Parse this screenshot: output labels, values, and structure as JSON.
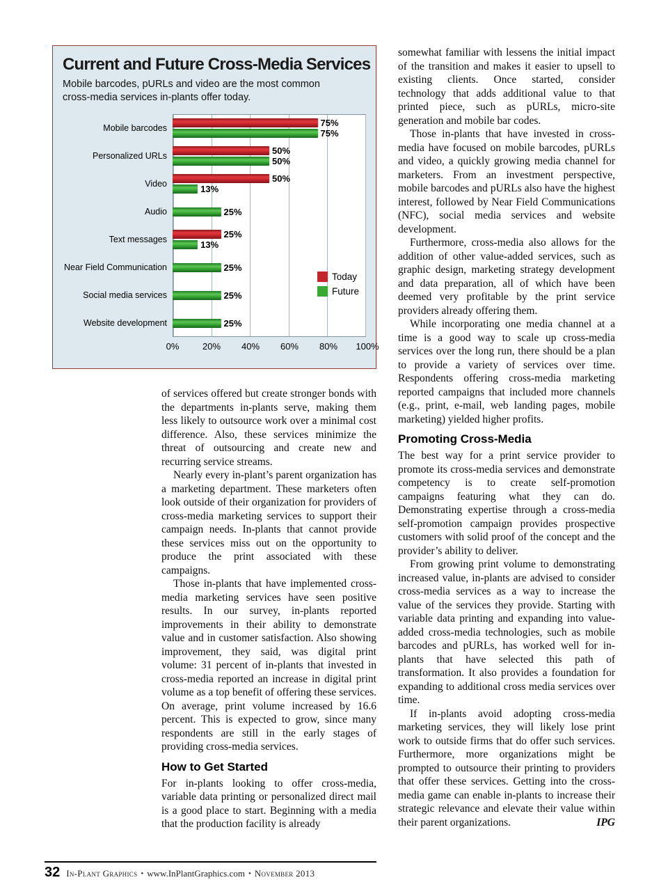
{
  "chart_data": {
    "type": "bar",
    "orientation": "horizontal",
    "title": "Current and Future Cross-Media Services",
    "subtitle": "Mobile barcodes, pURLs and video are the most common cross-media services in-plants offer today.",
    "categories": [
      "Mobile barcodes",
      "Personalized URLs",
      "Video",
      "Audio",
      "Text messages",
      "Near Field Communication",
      "Social media services",
      "Website development"
    ],
    "series": [
      {
        "name": "Today",
        "color": "#c1272d",
        "values": [
          75,
          50,
          50,
          null,
          25,
          null,
          null,
          null
        ]
      },
      {
        "name": "Future",
        "color": "#39a935",
        "values": [
          75,
          50,
          13,
          25,
          13,
          25,
          25,
          25
        ]
      }
    ],
    "xticks": [
      "0%",
      "20%",
      "40%",
      "60%",
      "80%",
      "100%"
    ],
    "xlim": [
      0,
      100
    ],
    "grid": "vertical",
    "legend_position": "inside-right",
    "panel_background": "#dde9ee"
  },
  "article": {
    "left_column": {
      "paragraphs_before_heading": [
        "of services offered but create stronger bonds with the departments in-plants serve, making them less likely to outsource work over a minimal cost difference. Also, these services minimize the threat of outsourcing and create new and recurring service streams.",
        "Nearly every in-plant’s parent organization has a marketing department. These marketers often look outside of their organization for providers of cross-media marketing services to support their campaign needs. In-plants that cannot provide these services miss out on the opportunity to produce the print associated with these campaigns.",
        "Those in-plants that have implemented cross-media marketing services have seen positive results. In our survey, in-plants reported improvements in their ability to demonstrate value and in customer satisfaction. Also showing improvement, they said, was digital print volume: 31 percent of in-plants that invested in cross-media reported an increase in digital print volume as a top benefit of offering these services. On average, print volume increased by 16.6 percent. This is expected to grow, since many respondents are still in the early stages of providing cross-media services."
      ],
      "heading": "How to Get Started",
      "paragraphs_after_heading": [
        "For in-plants looking to offer cross-media, variable data printing or personalized direct mail is a good place to start. Beginning with a media that the production facility is already"
      ]
    },
    "right_column": {
      "paragraphs_before_heading": [
        "somewhat familiar with lessens the initial impact of the transition and makes it easier to upsell to existing clients. Once started, consider technology that adds additional value to that printed piece, such as pURLs, micro-site generation and mobile bar codes.",
        "Those in-plants that have invested in cross-media have focused on mobile barcodes, pURLs and video, a quickly growing media channel for marketers. From an investment perspective, mobile barcodes and pURLs also have the highest interest, followed by Near Field Communications (NFC), social media services and website development.",
        "Furthermore, cross-media also allows for the addition of other value-added services, such as graphic design, marketing strategy development and data preparation, all of which have been deemed very profitable by the print service providers already offering them.",
        "While incorporating one media channel at a time is a good way to scale up cross-media services over the long run, there should be a plan to provide a variety of services over time. Respondents offering cross-media marketing reported campaigns that included more channels (e.g., print, e-mail, web landing pages, mobile marketing) yielded higher profits."
      ],
      "heading": "Promoting Cross-Media",
      "paragraphs_after_heading": [
        "The best way for a print service provider to promote its cross-media services and demonstrate competency is to create self-promotion campaigns featuring what they can do. Demonstrating expertise through a cross-media self-promotion campaign provides prospective customers with solid proof of the concept and the provider’s ability to deliver.",
        "From growing print volume to demonstrating increased value, in-plants are advised to consider cross-media services as a way to increase the value of the services they provide. Starting with variable data printing and expanding into value-added cross-media technologies, such as mobile barcodes and pURLs, has worked well for in-plants that have selected this path of transformation. It also provides a foundation for expanding to additional cross media services over time.",
        "If in-plants avoid adopting cross-media marketing services, they will likely lose print work to outside firms that do offer such services. Furthermore, more organizations might be prompted to outsource their printing to providers that offer these services. Getting into the cross-media game can enable in-plants to increase their strategic relevance and elevate their value within their parent organizations."
      ],
      "end_tag": "IPG"
    }
  },
  "footer": {
    "page_number": "32",
    "publication": "In-Plant Graphics",
    "separator": "•",
    "url": "www.InPlantGraphics.com",
    "issue": "November 2013"
  }
}
